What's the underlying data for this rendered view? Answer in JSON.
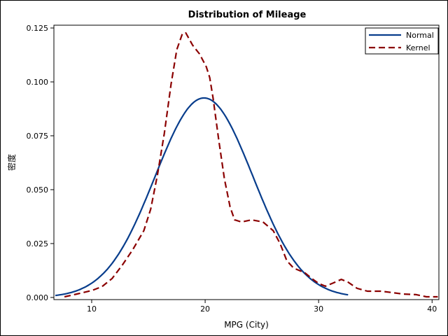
{
  "chart_data": {
    "type": "line",
    "title": "Distribution of Mileage",
    "xlabel": "MPG (City)",
    "ylabel": "密度",
    "xlim": [
      6.67,
      40.6
    ],
    "ylim": [
      -0.001,
      0.1263
    ],
    "xticks": [
      10,
      20,
      30,
      40
    ],
    "xtick_labels": [
      "10",
      "20",
      "30",
      "40"
    ],
    "yticks": [
      0,
      0.025,
      0.05,
      0.075,
      0.1,
      0.125
    ],
    "ytick_labels": [
      "0.000",
      "0.025",
      "0.050",
      "0.075",
      "0.100",
      "0.125"
    ],
    "grid": false,
    "legend": {
      "position": "top-right",
      "entries": [
        "Normal",
        "Kernel"
      ]
    },
    "series": [
      {
        "name": "Normal",
        "style": "solid",
        "color": "#083d8c",
        "distribution": {
          "mean": 19.9,
          "std": 4.31,
          "x_range": [
            6.8,
            32.7
          ]
        }
      },
      {
        "name": "Kernel",
        "style": "dashed",
        "color": "#8b0000",
        "x": [
          7.6,
          8.7,
          10,
          10.9,
          11.8,
          12.7,
          13.6,
          14.6,
          15.2,
          15.8,
          16.4,
          17.0,
          17.5,
          18.0,
          18.3,
          18.9,
          19.5,
          20.1,
          20.4,
          20.7,
          21.2,
          21.7,
          22.2,
          22.6,
          23.2,
          24.1,
          25.1,
          26.0,
          26.6,
          27.2,
          27.8,
          28.8,
          29.4,
          30.0,
          30.6,
          31.2,
          32.0,
          32.6,
          33.4,
          34.3,
          35.5,
          36.4,
          37.4,
          38.6,
          39.5,
          40.5
        ],
        "y": [
          0.0003,
          0.0016,
          0.0032,
          0.005,
          0.0088,
          0.015,
          0.022,
          0.031,
          0.041,
          0.057,
          0.076,
          0.099,
          0.115,
          0.1225,
          0.1227,
          0.117,
          0.113,
          0.107,
          0.102,
          0.0925,
          0.073,
          0.055,
          0.042,
          0.036,
          0.035,
          0.036,
          0.035,
          0.031,
          0.025,
          0.017,
          0.0136,
          0.0114,
          0.0088,
          0.0065,
          0.0052,
          0.0065,
          0.0084,
          0.0071,
          0.0042,
          0.0029,
          0.0029,
          0.0023,
          0.0016,
          0.0013,
          0.0003,
          0.0003
        ]
      }
    ]
  }
}
